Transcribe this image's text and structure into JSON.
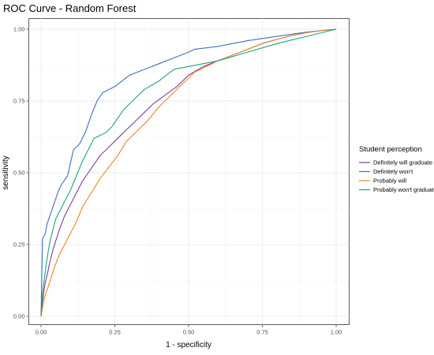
{
  "chart_data": {
    "type": "line",
    "title": "ROC Curve - Random Forest",
    "xlabel": "1 - specificity",
    "ylabel": "sensitivity",
    "xlim": [
      0,
      1
    ],
    "ylim": [
      0,
      1
    ],
    "x_ticks": [
      "0.00",
      "0.25",
      "0.50",
      "0.75",
      "1.00"
    ],
    "y_ticks": [
      "0.00",
      "0.25",
      "0.50",
      "0.75",
      "1.00"
    ],
    "grid": true,
    "legend": {
      "title": "Student perception",
      "position": "right"
    },
    "series": [
      {
        "name": "Definitely will graduate",
        "color": "#7b3f9e",
        "x": [
          0.0,
          0.003,
          0.006,
          0.01,
          0.015,
          0.022,
          0.03,
          0.04,
          0.052,
          0.065,
          0.08,
          0.095,
          0.11,
          0.125,
          0.14,
          0.16,
          0.18,
          0.2,
          0.23,
          0.26,
          0.29,
          0.32,
          0.35,
          0.38,
          0.42,
          0.46,
          0.5,
          0.55,
          0.6,
          0.65,
          0.7,
          0.75,
          0.8,
          0.85,
          0.9,
          0.95,
          1.0
        ],
        "y": [
          0.0,
          0.03,
          0.06,
          0.09,
          0.12,
          0.15,
          0.19,
          0.23,
          0.27,
          0.31,
          0.35,
          0.38,
          0.41,
          0.44,
          0.47,
          0.5,
          0.53,
          0.56,
          0.59,
          0.62,
          0.65,
          0.68,
          0.71,
          0.74,
          0.77,
          0.8,
          0.84,
          0.87,
          0.89,
          0.91,
          0.93,
          0.95,
          0.965,
          0.978,
          0.988,
          0.995,
          1.0
        ]
      },
      {
        "name": "Definitely won't",
        "color": "#3f6ec0",
        "x": [
          0.0,
          0.005,
          0.01,
          0.015,
          0.02,
          0.03,
          0.04,
          0.05,
          0.06,
          0.07,
          0.09,
          0.11,
          0.13,
          0.15,
          0.17,
          0.19,
          0.21,
          0.25,
          0.3,
          0.35,
          0.4,
          0.45,
          0.5,
          0.52,
          0.6,
          0.7,
          0.8,
          0.9,
          1.0
        ],
        "y": [
          0.0,
          0.27,
          0.28,
          0.29,
          0.32,
          0.35,
          0.38,
          0.41,
          0.44,
          0.46,
          0.49,
          0.58,
          0.6,
          0.64,
          0.7,
          0.75,
          0.78,
          0.8,
          0.84,
          0.86,
          0.88,
          0.9,
          0.92,
          0.93,
          0.94,
          0.96,
          0.975,
          0.99,
          1.0
        ]
      },
      {
        "name": "Probably will",
        "color": "#e88a1a",
        "x": [
          0.0,
          0.01,
          0.02,
          0.03,
          0.045,
          0.06,
          0.08,
          0.1,
          0.12,
          0.14,
          0.17,
          0.2,
          0.23,
          0.26,
          0.29,
          0.32,
          0.36,
          0.4,
          0.44,
          0.48,
          0.52,
          0.56,
          0.6,
          0.65,
          0.7,
          0.75,
          0.8,
          0.85,
          0.9,
          0.95,
          1.0
        ],
        "y": [
          0.0,
          0.06,
          0.09,
          0.12,
          0.17,
          0.21,
          0.25,
          0.29,
          0.33,
          0.38,
          0.43,
          0.48,
          0.52,
          0.56,
          0.61,
          0.64,
          0.68,
          0.73,
          0.77,
          0.81,
          0.85,
          0.87,
          0.89,
          0.91,
          0.93,
          0.95,
          0.965,
          0.978,
          0.988,
          0.995,
          1.0
        ]
      },
      {
        "name": "Probably won't graduate",
        "color": "#1aa57a",
        "x": [
          0.0,
          0.005,
          0.01,
          0.015,
          0.02,
          0.03,
          0.04,
          0.05,
          0.06,
          0.08,
          0.1,
          0.12,
          0.14,
          0.16,
          0.18,
          0.2,
          0.22,
          0.24,
          0.26,
          0.28,
          0.3,
          0.35,
          0.4,
          0.45,
          0.5,
          0.55,
          0.6,
          0.7,
          0.8,
          0.9,
          1.0
        ],
        "y": [
          0.0,
          0.08,
          0.12,
          0.16,
          0.2,
          0.26,
          0.3,
          0.34,
          0.36,
          0.4,
          0.44,
          0.49,
          0.54,
          0.58,
          0.62,
          0.63,
          0.64,
          0.66,
          0.69,
          0.72,
          0.74,
          0.79,
          0.82,
          0.86,
          0.87,
          0.88,
          0.89,
          0.92,
          0.95,
          0.975,
          1.0
        ]
      }
    ]
  }
}
